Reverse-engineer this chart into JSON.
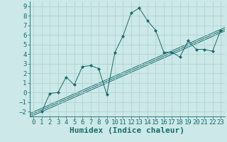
{
  "xlabel": "Humidex (Indice chaleur)",
  "background_color": "#cce8e8",
  "grid_color": "#aacfcf",
  "line_color": "#1a6b6b",
  "marker_color": "#1a6b6b",
  "xlim": [
    -0.5,
    23.5
  ],
  "ylim": [
    -2.5,
    9.5
  ],
  "xticks": [
    0,
    1,
    2,
    3,
    4,
    5,
    6,
    7,
    8,
    9,
    10,
    11,
    12,
    13,
    14,
    15,
    16,
    17,
    18,
    19,
    20,
    21,
    22,
    23
  ],
  "yticks": [
    -2,
    -1,
    0,
    1,
    2,
    3,
    4,
    5,
    6,
    7,
    8,
    9
  ],
  "data_x": [
    1,
    2,
    3,
    4,
    5,
    6,
    7,
    8,
    9,
    10,
    11,
    12,
    13,
    14,
    15,
    16,
    17,
    18,
    19,
    20,
    21,
    22,
    23
  ],
  "data_y": [
    -2.0,
    -0.1,
    0.0,
    1.6,
    0.8,
    2.7,
    2.8,
    2.5,
    -0.2,
    4.2,
    5.9,
    8.3,
    8.8,
    7.5,
    6.5,
    4.2,
    4.2,
    3.7,
    5.4,
    4.5,
    4.5,
    4.3,
    6.5
  ],
  "reg_slope": 0.374,
  "reg_intercept": -2.2,
  "reg_offsets": [
    -0.18,
    0.0,
    0.18
  ],
  "xlabel_fontsize": 8,
  "tick_fontsize": 6.5,
  "figsize": [
    3.2,
    2.0
  ],
  "dpi": 100
}
